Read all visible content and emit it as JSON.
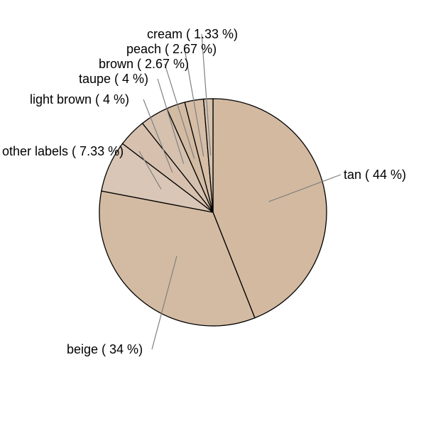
{
  "chart_data": {
    "type": "pie",
    "start_angle_deg": 90,
    "direction": "clockwise",
    "slices": [
      {
        "name": "tan",
        "value": 44,
        "label": "tan ( 44 %)",
        "color": "#D2B9A0",
        "label_side": "right"
      },
      {
        "name": "beige",
        "value": 34,
        "label": "beige ( 34 %)",
        "color": "#D3BBA3",
        "label_side": "left"
      },
      {
        "name": "other labels",
        "value": 7.33,
        "label": "other labels ( 7.33 %)",
        "color": "#D9C6B6",
        "label_side": "left"
      },
      {
        "name": "light brown",
        "value": 4,
        "label": "light brown ( 4 %)",
        "color": "#D7C1AE",
        "label_side": "left"
      },
      {
        "name": "taupe",
        "value": 4,
        "label": "taupe ( 4 %)",
        "color": "#D5C1AE",
        "label_side": "left"
      },
      {
        "name": "brown",
        "value": 2.67,
        "label": "brown ( 2.67 %)",
        "color": "#D3BBA3",
        "label_side": "left"
      },
      {
        "name": "peach",
        "value": 2.67,
        "label": "peach ( 2.67 %)",
        "color": "#D6BDA6",
        "label_side": "left"
      },
      {
        "name": "cream",
        "value": 1.33,
        "label": "cream ( 1.33 %)",
        "color": "#D6C2AE",
        "label_side": "left"
      }
    ]
  }
}
